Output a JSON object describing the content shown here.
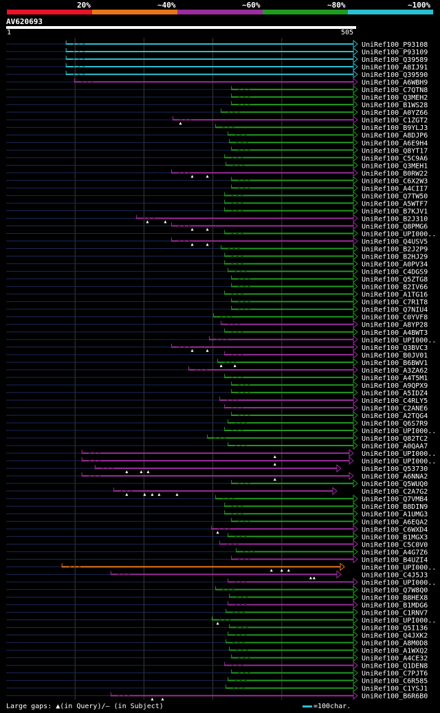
{
  "query": {
    "name": "AV620693",
    "start": "1",
    "end": "505",
    "length": 505
  },
  "legend": {
    "labels": [
      "20%",
      "~40%",
      "~60%",
      "~80%",
      "~100%"
    ],
    "colors": [
      "#e8122a",
      "#e8771c",
      "#9b2d9d",
      "#1f9b1f",
      "#2bc0d1"
    ]
  },
  "footer": {
    "gaps_text": "Large gaps: ▲(in Query)/– (in Subject)",
    "scale_text": "=100char."
  },
  "chart_data": {
    "type": "alignment-overview",
    "title": "AV620693",
    "x_range": [
      1,
      505
    ],
    "hits": [
      {
        "name": "UniRef100_P93108",
        "start": 88,
        "end": 505,
        "color": "cyan",
        "gaps": []
      },
      {
        "name": "UniRef100_P93109",
        "start": 88,
        "end": 505,
        "color": "cyan",
        "gaps": []
      },
      {
        "name": "UniRef100_Q39589",
        "start": 88,
        "end": 505,
        "color": "cyan",
        "gaps": []
      },
      {
        "name": "UniRef100_A8IJ91",
        "start": 88,
        "end": 505,
        "color": "cyan",
        "gaps": []
      },
      {
        "name": "UniRef100_Q39590",
        "start": 88,
        "end": 505,
        "color": "cyan",
        "gaps": []
      },
      {
        "name": "UniRef100_A6WBH9",
        "start": 100,
        "end": 505,
        "color": "purple",
        "gaps": []
      },
      {
        "name": "UniRef100_C7QTN8",
        "start": 328,
        "end": 505,
        "color": "green",
        "gaps": []
      },
      {
        "name": "UniRef100_Q3MEH2",
        "start": 328,
        "end": 505,
        "color": "green",
        "gaps": []
      },
      {
        "name": "UniRef100_B1WS28",
        "start": 328,
        "end": 505,
        "color": "green",
        "gaps": []
      },
      {
        "name": "UniRef100_A0YZ66",
        "start": 313,
        "end": 505,
        "color": "green",
        "gaps": []
      },
      {
        "name": "UniRef100_C1ZGT2",
        "start": 243,
        "end": 505,
        "color": "purple",
        "gaps": [
          254
        ]
      },
      {
        "name": "UniRef100_B9YLJ3",
        "start": 305,
        "end": 505,
        "color": "green",
        "gaps": []
      },
      {
        "name": "UniRef100_A8DJP6",
        "start": 323,
        "end": 505,
        "color": "green",
        "gaps": []
      },
      {
        "name": "UniRef100_A6E9H4",
        "start": 325,
        "end": 505,
        "color": "green",
        "gaps": []
      },
      {
        "name": "UniRef100_Q8YT17",
        "start": 328,
        "end": 505,
        "color": "green",
        "gaps": []
      },
      {
        "name": "UniRef100_C5C9A6",
        "start": 318,
        "end": 505,
        "color": "green",
        "gaps": []
      },
      {
        "name": "UniRef100_Q3MEH1",
        "start": 320,
        "end": 505,
        "color": "green",
        "gaps": []
      },
      {
        "name": "UniRef100_B0RW22",
        "start": 241,
        "end": 505,
        "color": "purple",
        "gaps": [
          271,
          293
        ]
      },
      {
        "name": "UniRef100_C6X2W3",
        "start": 328,
        "end": 505,
        "color": "green",
        "gaps": []
      },
      {
        "name": "UniRef100_A4CII7",
        "start": 328,
        "end": 505,
        "color": "green",
        "gaps": []
      },
      {
        "name": "UniRef100_Q7TW50",
        "start": 318,
        "end": 505,
        "color": "green",
        "gaps": []
      },
      {
        "name": "UniRef100_A5WTF7",
        "start": 318,
        "end": 505,
        "color": "green",
        "gaps": []
      },
      {
        "name": "UniRef100_B7KJV1",
        "start": 318,
        "end": 505,
        "color": "green",
        "gaps": []
      },
      {
        "name": "UniRef100_B2J310",
        "start": 190,
        "end": 505,
        "color": "purple",
        "gaps": [
          206,
          232
        ]
      },
      {
        "name": "UniRef100_Q8PMG6",
        "start": 241,
        "end": 505,
        "color": "purple",
        "gaps": [
          271,
          293
        ]
      },
      {
        "name": "UniRef100_UPI000..",
        "start": 318,
        "end": 505,
        "color": "green",
        "gaps": []
      },
      {
        "name": "UniRef100_Q4USV5",
        "start": 241,
        "end": 505,
        "color": "purple",
        "gaps": [
          271,
          293
        ]
      },
      {
        "name": "UniRef100_B2J2P9",
        "start": 313,
        "end": 505,
        "color": "green",
        "gaps": []
      },
      {
        "name": "UniRef100_B2HJ29",
        "start": 318,
        "end": 505,
        "color": "green",
        "gaps": []
      },
      {
        "name": "UniRef100_A0PV34",
        "start": 318,
        "end": 505,
        "color": "green",
        "gaps": []
      },
      {
        "name": "UniRef100_C4DGS9",
        "start": 323,
        "end": 505,
        "color": "green",
        "gaps": []
      },
      {
        "name": "UniRef100_Q5ZTG8",
        "start": 328,
        "end": 505,
        "color": "green",
        "gaps": []
      },
      {
        "name": "UniRef100_B2IV66",
        "start": 328,
        "end": 505,
        "color": "green",
        "gaps": []
      },
      {
        "name": "UniRef100_A1TG16",
        "start": 318,
        "end": 505,
        "color": "green",
        "gaps": []
      },
      {
        "name": "UniRef100_C7R1T8",
        "start": 328,
        "end": 505,
        "color": "green",
        "gaps": []
      },
      {
        "name": "UniRef100_Q7NIU4",
        "start": 328,
        "end": 505,
        "color": "green",
        "gaps": []
      },
      {
        "name": "UniRef100_C0YVF8",
        "start": 302,
        "end": 505,
        "color": "green",
        "gaps": []
      },
      {
        "name": "UniRef100_A8YP28",
        "start": 313,
        "end": 505,
        "color": "purple",
        "gaps": []
      },
      {
        "name": "UniRef100_A4BWT3",
        "start": 318,
        "end": 505,
        "color": "green",
        "gaps": []
      },
      {
        "name": "UniRef100_UPI000..",
        "start": 296,
        "end": 505,
        "color": "purple",
        "gaps": []
      },
      {
        "name": "UniRef100_Q3BVC3",
        "start": 241,
        "end": 505,
        "color": "purple",
        "gaps": [
          271,
          293
        ]
      },
      {
        "name": "UniRef100_B0JV01",
        "start": 318,
        "end": 505,
        "color": "purple",
        "gaps": []
      },
      {
        "name": "UniRef100_B6BWV1",
        "start": 308,
        "end": 505,
        "color": "green",
        "gaps": [
          313,
          333
        ]
      },
      {
        "name": "UniRef100_A3ZA62",
        "start": 266,
        "end": 505,
        "color": "purple",
        "gaps": []
      },
      {
        "name": "UniRef100_A4T5M1",
        "start": 318,
        "end": 505,
        "color": "green",
        "gaps": []
      },
      {
        "name": "UniRef100_A9QPX9",
        "start": 328,
        "end": 505,
        "color": "green",
        "gaps": []
      },
      {
        "name": "UniRef100_A5IDZ4",
        "start": 328,
        "end": 505,
        "color": "green",
        "gaps": []
      },
      {
        "name": "UniRef100_C4RLY5",
        "start": 311,
        "end": 505,
        "color": "purple",
        "gaps": []
      },
      {
        "name": "UniRef100_C2ANE6",
        "start": 318,
        "end": 505,
        "color": "purple",
        "gaps": []
      },
      {
        "name": "UniRef100_A2TQG4",
        "start": 328,
        "end": 505,
        "color": "green",
        "gaps": []
      },
      {
        "name": "UniRef100_Q6S7R9",
        "start": 323,
        "end": 505,
        "color": "green",
        "gaps": []
      },
      {
        "name": "UniRef100_UPI000..",
        "start": 318,
        "end": 505,
        "color": "green",
        "gaps": []
      },
      {
        "name": "UniRef100_Q82TC2",
        "start": 293,
        "end": 505,
        "color": "green",
        "gaps": []
      },
      {
        "name": "UniRef100_A0QAA7",
        "start": 323,
        "end": 505,
        "color": "green",
        "gaps": []
      },
      {
        "name": "UniRef100_UPI000..",
        "start": 111,
        "end": 499,
        "color": "purple",
        "gaps": [
          391
        ]
      },
      {
        "name": "UniRef100_UPI000..",
        "start": 111,
        "end": 499,
        "color": "purple",
        "gaps": [
          391
        ]
      },
      {
        "name": "UniRef100_Q53730",
        "start": 130,
        "end": 481,
        "color": "purple",
        "gaps": [
          176,
          197,
          207
        ]
      },
      {
        "name": "UniRef100_A6NNA2",
        "start": 111,
        "end": 499,
        "color": "purple",
        "gaps": [
          391
        ]
      },
      {
        "name": "UniRef100_Q5WUQ0",
        "start": 328,
        "end": 505,
        "color": "green",
        "gaps": []
      },
      {
        "name": "UniRef100_C2A7G2",
        "start": 157,
        "end": 475,
        "color": "purple",
        "gaps": [
          176,
          202,
          213,
          223,
          249
        ]
      },
      {
        "name": "UniRef100_Q7VMB4",
        "start": 305,
        "end": 505,
        "color": "green",
        "gaps": []
      },
      {
        "name": "UniRef100_B8DIN9",
        "start": 318,
        "end": 505,
        "color": "green",
        "gaps": []
      },
      {
        "name": "UniRef100_A1UMG3",
        "start": 318,
        "end": 505,
        "color": "green",
        "gaps": []
      },
      {
        "name": "UniRef100_A6EQA2",
        "start": 328,
        "end": 505,
        "color": "green",
        "gaps": []
      },
      {
        "name": "UniRef100_C6WXD4",
        "start": 299,
        "end": 505,
        "color": "purple",
        "gaps": [
          308
        ]
      },
      {
        "name": "UniRef100_B1MGX3",
        "start": 323,
        "end": 505,
        "color": "green",
        "gaps": []
      },
      {
        "name": "UniRef100_C5C0V0",
        "start": 311,
        "end": 505,
        "color": "purple",
        "gaps": []
      },
      {
        "name": "UniRef100_A4G7Z6",
        "start": 335,
        "end": 505,
        "color": "green",
        "gaps": []
      },
      {
        "name": "UniRef100_B4UZI4",
        "start": 328,
        "end": 505,
        "color": "purple",
        "gaps": []
      },
      {
        "name": "UniRef100_UPI000..",
        "start": 82,
        "end": 486,
        "color": "orange",
        "gaps": [
          386,
          401,
          411
        ]
      },
      {
        "name": "UniRef100_C4J5J3",
        "start": 153,
        "end": 481,
        "color": "purple",
        "gaps": [
          443,
          448
        ]
      },
      {
        "name": "UniRef100_UPI000..",
        "start": 323,
        "end": 505,
        "color": "purple",
        "gaps": []
      },
      {
        "name": "UniRef100_Q7W8Q0",
        "start": 305,
        "end": 505,
        "color": "green",
        "gaps": []
      },
      {
        "name": "UniRef100_B8HEX8",
        "start": 325,
        "end": 505,
        "color": "green",
        "gaps": []
      },
      {
        "name": "UniRef100_B1MDG6",
        "start": 323,
        "end": 505,
        "color": "purple",
        "gaps": []
      },
      {
        "name": "UniRef100_C1RNV7",
        "start": 320,
        "end": 505,
        "color": "green",
        "gaps": []
      },
      {
        "name": "UniRef100_UPI000..",
        "start": 300,
        "end": 505,
        "color": "green",
        "gaps": [
          308
        ]
      },
      {
        "name": "UniRef100_Q5I136",
        "start": 325,
        "end": 505,
        "color": "green",
        "gaps": []
      },
      {
        "name": "UniRef100_Q4JXK2",
        "start": 323,
        "end": 505,
        "color": "green",
        "gaps": []
      },
      {
        "name": "UniRef100_A8M0D8",
        "start": 320,
        "end": 505,
        "color": "green",
        "gaps": []
      },
      {
        "name": "UniRef100_A1WXQ2",
        "start": 325,
        "end": 505,
        "color": "green",
        "gaps": []
      },
      {
        "name": "UniRef100_A4CE32",
        "start": 328,
        "end": 505,
        "color": "green",
        "gaps": []
      },
      {
        "name": "UniRef100_Q1DEN8",
        "start": 318,
        "end": 505,
        "color": "purple",
        "gaps": []
      },
      {
        "name": "UniRef100_C7PJT6",
        "start": 328,
        "end": 505,
        "color": "green",
        "gaps": []
      },
      {
        "name": "UniRef100_C6R585",
        "start": 323,
        "end": 505,
        "color": "green",
        "gaps": []
      },
      {
        "name": "UniRef100_C1YSJ1",
        "start": 320,
        "end": 505,
        "color": "green",
        "gaps": []
      },
      {
        "name": "UniRef100_B6R6B0",
        "start": 153,
        "end": 505,
        "color": "purple",
        "gaps": [
          213,
          228
        ]
      }
    ]
  }
}
